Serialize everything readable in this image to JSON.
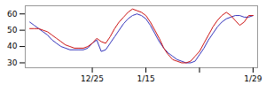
{
  "chart_data": {
    "type": "line",
    "x": [
      0,
      1,
      2,
      3,
      4,
      5,
      6,
      7,
      8,
      9,
      10,
      11,
      12,
      13,
      14,
      15,
      16,
      17,
      18,
      19,
      20,
      21,
      22,
      23,
      24,
      25,
      26,
      27,
      28,
      29,
      30,
      31,
      32,
      33,
      34,
      35,
      36,
      37,
      38,
      39,
      40,
      41,
      42,
      43,
      44,
      45,
      46,
      47,
      48,
      49,
      50
    ],
    "series": [
      {
        "color": "#3333bb",
        "values": [
          55,
          53,
          51,
          49,
          47,
          44,
          42,
          40,
          39,
          38,
          38,
          38,
          38,
          39,
          42,
          44,
          37,
          38,
          42,
          46,
          50,
          54,
          57,
          59,
          60,
          59,
          57,
          53,
          48,
          43,
          39,
          36,
          34,
          32,
          31,
          30,
          30,
          31,
          35,
          39,
          44,
          48,
          52,
          55,
          57,
          58,
          59,
          59,
          58,
          58,
          59
        ]
      },
      {
        "color": "#cc1111",
        "values": [
          51,
          51,
          51,
          50,
          49,
          47,
          45,
          43,
          41,
          40,
          39,
          39,
          39,
          40,
          42,
          45,
          43,
          42,
          46,
          51,
          55,
          58,
          61,
          63,
          62,
          61,
          59,
          55,
          50,
          45,
          39,
          35,
          32,
          31,
          30,
          30,
          31,
          34,
          37,
          42,
          47,
          52,
          56,
          59,
          61,
          59,
          56,
          53,
          55,
          59,
          59
        ]
      }
    ],
    "xlim": [
      -1,
      51
    ],
    "xticks": [
      {
        "value": 14,
        "label": "12/25"
      },
      {
        "value": 26,
        "label": "1/15"
      },
      {
        "value": 38,
        "label": ""
      },
      {
        "value": 50,
        "label": "1/29"
      }
    ],
    "ylim": [
      27,
      65
    ],
    "yticks": [
      30,
      40,
      50,
      60
    ],
    "grid": false
  }
}
